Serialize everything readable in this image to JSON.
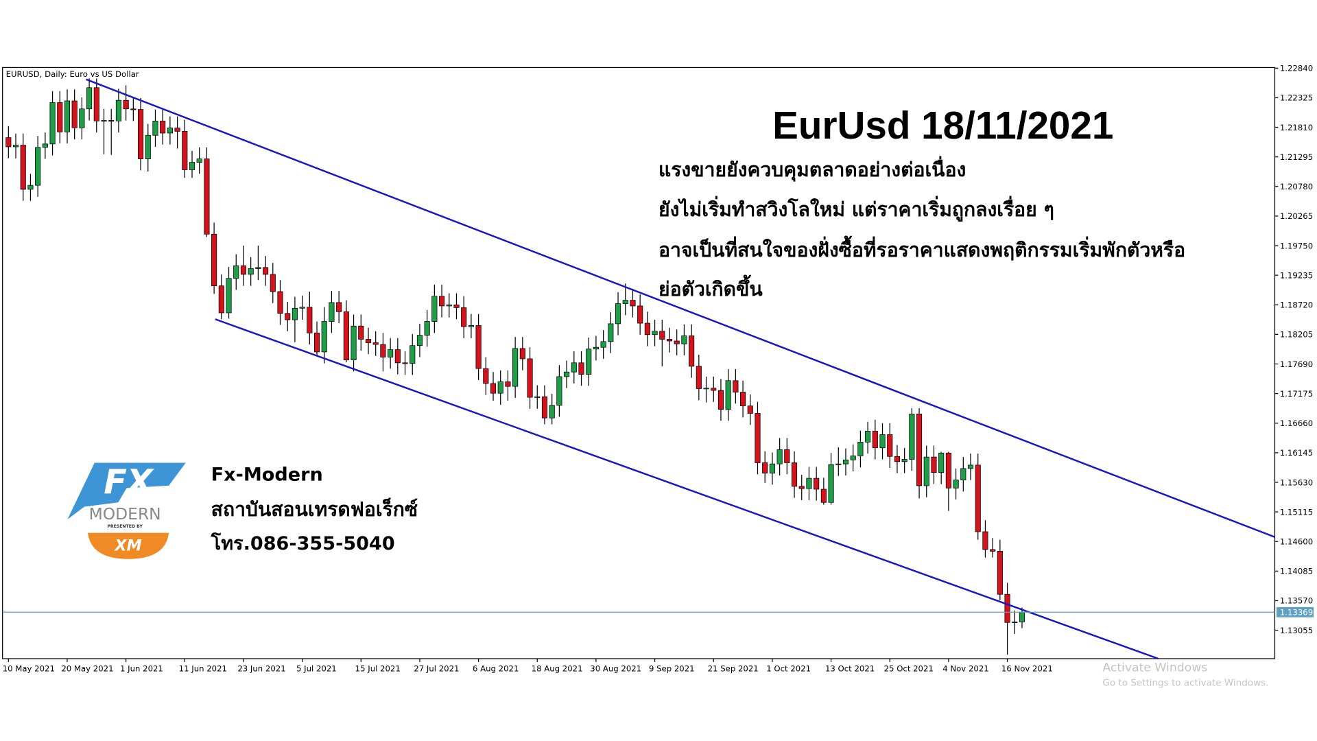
{
  "chart_data": {
    "type": "candlestick",
    "header": "EURUSD, Daily:  Euro vs US Dollar",
    "annotation": {
      "title": "EurUsd 18/11/2021",
      "lines": [
        "แรงขายยังควบคุมตลาดอย่างต่อเนื่อง",
        "ยังไม่เริ่มทำสวิงโลใหม่ แต่ราคาเริ่มถูกลงเรื่อย ๆ",
        "อาจเป็นที่สนใจของฝั่งซื้อที่รอราคาแสดงพฤติกรรมเริ่มพักตัวหรือ",
        "ย่อตัวเกิดขึ้น"
      ]
    },
    "categories": [
      "10 May 2021",
      null,
      null,
      null,
      null,
      null,
      null,
      null,
      "20 May 2021",
      null,
      null,
      null,
      null,
      null,
      null,
      null,
      "1 Jun 2021",
      null,
      null,
      null,
      null,
      null,
      null,
      null,
      "11 Jun 2021",
      null,
      null,
      null,
      null,
      null,
      null,
      null,
      "23 Jun 2021",
      null,
      null,
      null,
      null,
      null,
      null,
      null,
      "5 Jul 2021",
      null,
      null,
      null,
      null,
      null,
      null,
      null,
      "15 Jul 2021",
      null,
      null,
      null,
      null,
      null,
      null,
      null,
      "27 Jul 2021",
      null,
      null,
      null,
      null,
      null,
      null,
      null,
      "6 Aug 2021",
      null,
      null,
      null,
      null,
      null,
      null,
      null,
      "18 Aug 2021",
      null,
      null,
      null,
      null,
      null,
      null,
      null,
      "30 Aug 2021",
      null,
      null,
      null,
      null,
      null,
      null,
      null,
      "9 Sep 2021",
      null,
      null,
      null,
      null,
      null,
      null,
      null,
      "21 Sep 2021",
      null,
      null,
      null,
      null,
      null,
      null,
      null,
      "1 Oct 2021",
      null,
      null,
      null,
      null,
      null,
      null,
      null,
      "13 Oct 2021",
      null,
      null,
      null,
      null,
      null,
      null,
      null,
      "25 Oct 2021",
      null,
      null,
      null,
      null,
      null,
      null,
      null,
      "4 Nov 2021",
      null,
      null,
      null,
      null,
      null,
      null,
      null,
      "16 Nov 2021",
      null,
      null
    ],
    "open": [
      1.2163,
      1.2147,
      1.215,
      1.2073,
      1.208,
      1.2146,
      1.2152,
      1.2224,
      1.2173,
      1.2227,
      1.218,
      1.2213,
      1.225,
      1.2192,
      1.2193,
      1.2192,
      1.2228,
      1.2213,
      1.2212,
      1.2126,
      1.2167,
      1.2192,
      1.2171,
      1.218,
      1.2174,
      1.2107,
      1.212,
      1.2126,
      1.1995,
      1.1905,
      1.1858,
      1.1918,
      1.194,
      1.1925,
      1.1935,
      1.1937,
      1.1925,
      1.1895,
      1.1857,
      1.1846,
      1.1866,
      1.1868,
      1.1823,
      1.179,
      1.1843,
      1.1876,
      1.186,
      1.1776,
      1.1835,
      1.1812,
      1.1806,
      1.1803,
      1.1781,
      1.1794,
      1.1771,
      1.177,
      1.1801,
      1.1819,
      1.1843,
      1.1887,
      1.187,
      1.1872,
      1.1867,
      1.1834,
      1.1836,
      1.1761,
      1.1735,
      1.1718,
      1.1738,
      1.173,
      1.1796,
      1.1778,
      1.1711,
      1.1712,
      1.1675,
      1.1697,
      1.1747,
      1.1755,
      1.1771,
      1.1751,
      1.1795,
      1.1798,
      1.1808,
      1.1839,
      1.1874,
      1.188,
      1.187,
      1.184,
      1.182,
      1.1826,
      1.1812,
      1.1809,
      1.1804,
      1.1818,
      1.1765,
      1.1726,
      1.1727,
      1.1723,
      1.169,
      1.174,
      1.172,
      1.1696,
      1.1683,
      1.1597,
      1.1579,
      1.1595,
      1.162,
      1.1597,
      1.1556,
      1.1552,
      1.157,
      1.1551,
      1.1528,
      1.1594,
      1.1595,
      1.1602,
      1.1609,
      1.1633,
      1.1652,
      1.1623,
      1.1646,
      1.1608,
      1.1599,
      1.1603,
      1.1682,
      1.1557,
      1.1607,
      1.158,
      1.1614,
      1.1553,
      1.1567,
      1.1587,
      1.1593,
      1.1477,
      1.1446,
      1.1443,
      1.1368,
      1.1319,
      1.132
    ],
    "high": [
      1.2183,
      1.217,
      1.217,
      1.21,
      1.2166,
      1.2172,
      1.2244,
      1.2244,
      1.2247,
      1.2247,
      1.2233,
      1.2266,
      1.2266,
      1.2213,
      1.2213,
      1.2248,
      1.2254,
      1.2232,
      1.2232,
      1.2187,
      1.2212,
      1.2212,
      1.22,
      1.22,
      1.2194,
      1.214,
      1.2146,
      1.2146,
      1.2015,
      1.1925,
      1.1938,
      1.196,
      1.1975,
      1.1955,
      1.1975,
      1.1957,
      1.1945,
      1.1915,
      1.1877,
      1.1886,
      1.1888,
      1.1895,
      1.1843,
      1.1868,
      1.1896,
      1.1896,
      1.188,
      1.1855,
      1.1855,
      1.1832,
      1.1826,
      1.1823,
      1.1814,
      1.1814,
      1.1791,
      1.1821,
      1.1839,
      1.1863,
      1.1907,
      1.1907,
      1.1892,
      1.1892,
      1.1887,
      1.1856,
      1.1856,
      1.1781,
      1.1755,
      1.1758,
      1.1758,
      1.1816,
      1.1816,
      1.1798,
      1.1732,
      1.1732,
      1.1717,
      1.1767,
      1.1775,
      1.1791,
      1.1791,
      1.1815,
      1.1818,
      1.1828,
      1.1859,
      1.1894,
      1.1909,
      1.19,
      1.189,
      1.186,
      1.1846,
      1.1846,
      1.1832,
      1.1829,
      1.1838,
      1.1838,
      1.1785,
      1.1747,
      1.1747,
      1.1743,
      1.176,
      1.176,
      1.174,
      1.1716,
      1.1703,
      1.1617,
      1.1615,
      1.164,
      1.164,
      1.1617,
      1.1576,
      1.159,
      1.159,
      1.1571,
      1.1614,
      1.1624,
      1.1622,
      1.1629,
      1.1653,
      1.1668,
      1.1672,
      1.1666,
      1.1666,
      1.1628,
      1.1623,
      1.1692,
      1.1692,
      1.1627,
      1.1627,
      1.1616,
      1.1616,
      1.1587,
      1.1607,
      1.1613,
      1.1613,
      1.1497,
      1.1466,
      1.1463,
      1.1388,
      1.134,
      1.1345
    ],
    "low": [
      1.2127,
      1.2127,
      1.2053,
      1.2053,
      1.206,
      1.2126,
      1.2132,
      1.2153,
      1.2153,
      1.216,
      1.216,
      1.2193,
      1.2172,
      1.2134,
      1.2133,
      1.2172,
      1.2193,
      1.2192,
      1.2106,
      1.2104,
      1.2147,
      1.2151,
      1.2151,
      1.2144,
      1.2093,
      1.2093,
      1.21,
      1.199,
      1.1891,
      1.1847,
      1.1848,
      1.1898,
      1.1905,
      1.1905,
      1.1915,
      1.1905,
      1.1875,
      1.1837,
      1.1826,
      1.1807,
      1.1846,
      1.1803,
      1.1782,
      1.177,
      1.1823,
      1.184,
      1.1772,
      1.1756,
      1.1792,
      1.1786,
      1.1783,
      1.1756,
      1.1761,
      1.1751,
      1.175,
      1.175,
      1.1781,
      1.1799,
      1.1823,
      1.185,
      1.185,
      1.1847,
      1.1814,
      1.1814,
      1.1741,
      1.1715,
      1.1705,
      1.1698,
      1.1705,
      1.171,
      1.1758,
      1.1691,
      1.1691,
      1.1664,
      1.1664,
      1.1677,
      1.1727,
      1.1735,
      1.1731,
      1.1731,
      1.1775,
      1.1778,
      1.1788,
      1.1819,
      1.1854,
      1.185,
      1.182,
      1.18,
      1.18,
      1.1765,
      1.1789,
      1.1784,
      1.1784,
      1.1745,
      1.1706,
      1.1702,
      1.1703,
      1.167,
      1.167,
      1.17,
      1.1676,
      1.1663,
      1.1577,
      1.1562,
      1.1559,
      1.1575,
      1.1577,
      1.1536,
      1.1532,
      1.1532,
      1.1531,
      1.1524,
      1.1524,
      1.1574,
      1.1575,
      1.1582,
      1.1589,
      1.1613,
      1.1603,
      1.1603,
      1.1588,
      1.1579,
      1.1579,
      1.1583,
      1.1535,
      1.1537,
      1.156,
      1.156,
      1.1513,
      1.1533,
      1.1547,
      1.1567,
      1.1463,
      1.1432,
      1.1432,
      1.1358,
      1.1263,
      1.1299,
      1.1309
    ],
    "close": [
      1.2147,
      1.215,
      1.2073,
      1.208,
      1.2146,
      1.2152,
      1.2224,
      1.2173,
      1.2227,
      1.218,
      1.2213,
      1.225,
      1.2192,
      1.2193,
      1.2192,
      1.2228,
      1.2213,
      1.2212,
      1.2126,
      1.2167,
      1.2192,
      1.2171,
      1.218,
      1.2174,
      1.2107,
      1.212,
      1.2126,
      1.1995,
      1.1905,
      1.1858,
      1.1918,
      1.194,
      1.1925,
      1.1935,
      1.1937,
      1.1925,
      1.1895,
      1.1857,
      1.1846,
      1.1866,
      1.1868,
      1.1823,
      1.179,
      1.1843,
      1.1876,
      1.186,
      1.1776,
      1.1835,
      1.1812,
      1.1806,
      1.1803,
      1.1781,
      1.1794,
      1.1771,
      1.177,
      1.1801,
      1.1819,
      1.1843,
      1.1887,
      1.187,
      1.1872,
      1.1867,
      1.1834,
      1.1836,
      1.1761,
      1.1735,
      1.1718,
      1.1738,
      1.173,
      1.1796,
      1.1778,
      1.1711,
      1.1712,
      1.1675,
      1.1697,
      1.1747,
      1.1755,
      1.1771,
      1.1751,
      1.1795,
      1.1798,
      1.1808,
      1.1839,
      1.1874,
      1.188,
      1.187,
      1.184,
      1.182,
      1.1826,
      1.1812,
      1.1809,
      1.1804,
      1.1818,
      1.1765,
      1.1726,
      1.1727,
      1.1723,
      1.169,
      1.174,
      1.172,
      1.1696,
      1.1683,
      1.1597,
      1.1579,
      1.1595,
      1.162,
      1.1597,
      1.1556,
      1.1552,
      1.157,
      1.1551,
      1.1528,
      1.1594,
      1.1595,
      1.1602,
      1.1609,
      1.1633,
      1.1652,
      1.1623,
      1.1646,
      1.1608,
      1.1599,
      1.1603,
      1.1682,
      1.1557,
      1.1607,
      1.158,
      1.1614,
      1.1553,
      1.1567,
      1.1587,
      1.1593,
      1.1477,
      1.1446,
      1.1443,
      1.1368,
      1.1319,
      1.132,
      1.1337
    ],
    "up_color": "#1f9e48",
    "down_color": "#d3141c",
    "ylim": [
      1.1256,
      1.2285
    ],
    "yticks": [
      {
        "value": 1.2284,
        "label": "1.22840"
      },
      1.22325,
      {
        "value": 1.2181,
        "label": "1.21810"
      },
      1.21295,
      {
        "value": 1.2078,
        "label": "1.20780"
      },
      1.20265,
      {
        "value": 1.1975,
        "label": "1.19750"
      },
      1.19235,
      {
        "value": 1.1872,
        "label": "1.18720"
      },
      1.18205,
      {
        "value": 1.1769,
        "label": "1.17690"
      },
      1.17175,
      {
        "value": 1.1666,
        "label": "1.16660"
      },
      1.16145,
      {
        "value": 1.1563,
        "label": "1.15630"
      },
      1.15115,
      {
        "value": 1.146,
        "label": "1.14600"
      },
      1.14085,
      {
        "value": 1.1357,
        "label": "1.13570"
      },
      1.13055
    ],
    "current_price": 1.13369,
    "current_price_color": "#5f9fc0"
  },
  "logo": {
    "mark": "FX",
    "name": "MODERN",
    "presented": "PRESENTED BY",
    "broker": "XM"
  },
  "contact": [
    "Fx-Modern",
    "สถาบันสอนเทรดฟอเร็กซ์",
    "โทร.086-355-5040"
  ],
  "watermark": [
    "Activate Windows",
    "Go to Settings to activate Windows."
  ]
}
